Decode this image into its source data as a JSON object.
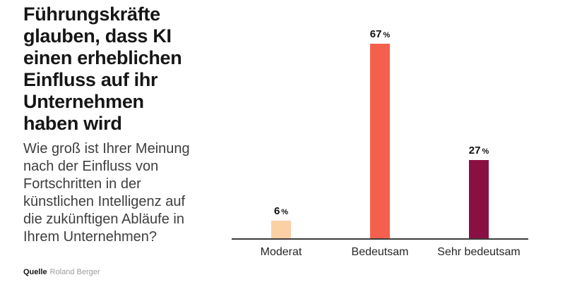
{
  "header": {
    "title": "Führungskräfte\nglauben, dass KI\neinen erheblichen\nEinfluss auf ihr\nUnternehmen\nhaben wird",
    "subtitle": "Wie groß ist Ihrer Meinung\nnach der Einfluss von\nFortschritten in der\nkünstlichen Intelligenz auf\ndie zukünftigen Abläufe in\nIhrem Unternehmen?"
  },
  "source": {
    "label": "Quelle",
    "text": "Roland Berger"
  },
  "chart_data": {
    "type": "bar",
    "title": "Führungskräfte glauben, dass KI einen erheblichen Einfluss auf ihr Unternehmen haben wird",
    "subtitle": "Wie groß ist Ihrer Meinung nach der Einfluss von Fortschritten in der künstlichen Intelligenz auf die zukünftigen Abläufe in Ihrem Unternehmen?",
    "categories": [
      "Moderat",
      "Bedeutsam",
      "Sehr bedeutsam"
    ],
    "values": [
      6,
      67,
      27
    ],
    "unit": "%",
    "value_labels": [
      "6 %",
      "67 %",
      "27 %"
    ],
    "colors": [
      "#fbd0a4",
      "#f4604d",
      "#8a1044"
    ],
    "xlabel": "",
    "ylabel": "",
    "ylim": [
      0,
      70
    ],
    "grid": false,
    "legend": "none",
    "axis_line_color": "#3c3c3c",
    "value_label_color": "#111111",
    "category_label_color": "#262626"
  }
}
